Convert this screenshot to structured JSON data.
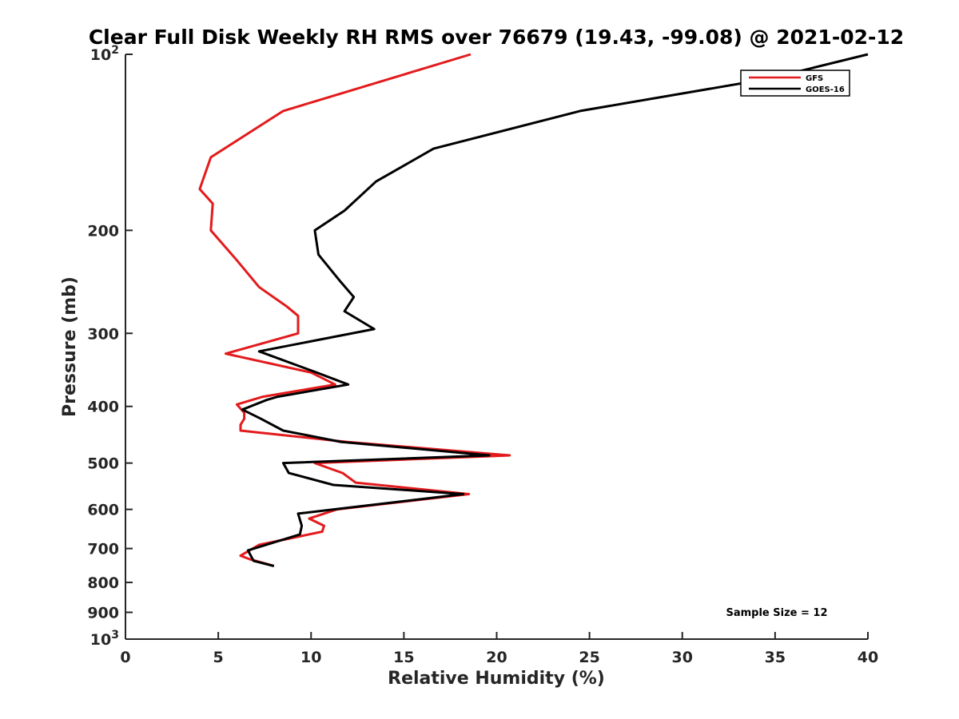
{
  "chart_data": {
    "type": "line",
    "title": "Clear Full Disk Weekly RH RMS over 76679 (19.43, -99.08) @ 2021-02-12",
    "xlabel": "Relative Humidity (%)",
    "ylabel": "Pressure (mb)",
    "xlim": [
      0,
      40
    ],
    "ylim": [
      100,
      1000
    ],
    "yscale": "log",
    "y_reversed": true,
    "grid": false,
    "legend_position": "top-right",
    "x_ticks": [
      {
        "value": 0,
        "label": "0"
      },
      {
        "value": 5,
        "label": "5"
      },
      {
        "value": 10,
        "label": "10"
      },
      {
        "value": 15,
        "label": "15"
      },
      {
        "value": 20,
        "label": "20"
      },
      {
        "value": 25,
        "label": "25"
      },
      {
        "value": 30,
        "label": "30"
      },
      {
        "value": 35,
        "label": "35"
      },
      {
        "value": 40,
        "label": "40"
      }
    ],
    "y_ticks": [
      {
        "value": 100,
        "base": "10",
        "exp": "2"
      },
      {
        "value": 200,
        "base": "200",
        "exp": ""
      },
      {
        "value": 300,
        "base": "300",
        "exp": ""
      },
      {
        "value": 400,
        "base": "400",
        "exp": ""
      },
      {
        "value": 500,
        "base": "500",
        "exp": ""
      },
      {
        "value": 600,
        "base": "600",
        "exp": ""
      },
      {
        "value": 700,
        "base": "700",
        "exp": ""
      },
      {
        "value": 800,
        "base": "800",
        "exp": ""
      },
      {
        "value": 900,
        "base": "900",
        "exp": ""
      },
      {
        "value": 1000,
        "base": "10",
        "exp": "3"
      }
    ],
    "annotation": "Sample Size = 12",
    "series": [
      {
        "name": "GFS",
        "color": "#e31a1c",
        "points": [
          [
            18.6,
            100
          ],
          [
            8.5,
            125
          ],
          [
            4.6,
            150
          ],
          [
            4.0,
            170
          ],
          [
            4.7,
            180
          ],
          [
            4.6,
            200
          ],
          [
            6.0,
            225
          ],
          [
            7.2,
            250
          ],
          [
            8.7,
            270
          ],
          [
            9.3,
            280
          ],
          [
            9.3,
            300
          ],
          [
            5.4,
            325
          ],
          [
            10.0,
            350
          ],
          [
            11.3,
            367
          ],
          [
            7.4,
            385
          ],
          [
            6.0,
            397
          ],
          [
            6.4,
            410
          ],
          [
            6.4,
            420
          ],
          [
            6.2,
            430
          ],
          [
            6.2,
            440
          ],
          [
            11.9,
            460
          ],
          [
            20.7,
            485
          ],
          [
            10.2,
            500
          ],
          [
            11.7,
            520
          ],
          [
            12.4,
            540
          ],
          [
            18.5,
            565
          ],
          [
            11.4,
            600
          ],
          [
            9.9,
            622
          ],
          [
            10.7,
            640
          ],
          [
            10.6,
            655
          ],
          [
            7.2,
            690
          ],
          [
            6.2,
            720
          ],
          [
            6.7,
            730
          ],
          [
            8.0,
            750
          ]
        ]
      },
      {
        "name": "GOES-16",
        "color": "#000000",
        "points": [
          [
            40.0,
            100
          ],
          [
            34.7,
            110
          ],
          [
            24.5,
            125
          ],
          [
            16.6,
            145
          ],
          [
            13.5,
            165
          ],
          [
            11.8,
            185
          ],
          [
            10.2,
            200
          ],
          [
            10.4,
            220
          ],
          [
            11.6,
            245
          ],
          [
            12.3,
            260
          ],
          [
            11.8,
            275
          ],
          [
            13.4,
            295
          ],
          [
            7.2,
            322
          ],
          [
            10.3,
            350
          ],
          [
            12.0,
            367
          ],
          [
            8.2,
            385
          ],
          [
            7.6,
            390
          ],
          [
            6.3,
            405
          ],
          [
            7.3,
            420
          ],
          [
            8.5,
            440
          ],
          [
            11.6,
            460
          ],
          [
            19.6,
            485
          ],
          [
            8.5,
            500
          ],
          [
            8.8,
            520
          ],
          [
            11.2,
            545
          ],
          [
            18.2,
            565
          ],
          [
            9.3,
            610
          ],
          [
            9.5,
            640
          ],
          [
            9.4,
            662
          ],
          [
            6.6,
            705
          ],
          [
            6.9,
            735
          ],
          [
            8.0,
            750
          ]
        ]
      }
    ]
  }
}
